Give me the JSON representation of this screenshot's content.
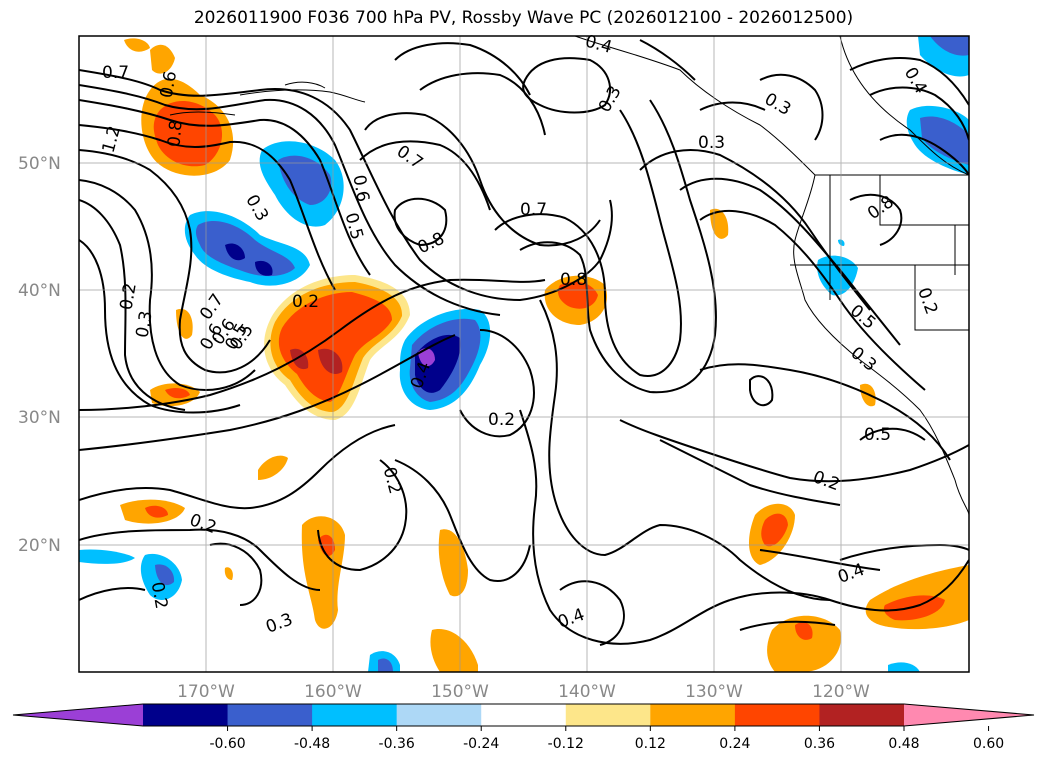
{
  "title": "2026011900 F036 700 hPa PV, Rossby Wave PC (2026012100 - 2026012500)",
  "lat_labels": [
    "50°N",
    "40°N",
    "30°N",
    "20°N"
  ],
  "lon_labels": [
    "170°W",
    "160°W",
    "150°W",
    "140°W",
    "130°W",
    "120°W"
  ],
  "colorbar": {
    "ticks": [
      "-0.60",
      "-0.48",
      "-0.36",
      "-0.24",
      "-0.12",
      "0.12",
      "0.24",
      "0.36",
      "0.48",
      "0.60"
    ],
    "colors": [
      "#9b3fd6",
      "#00008b",
      "#3a5fcd",
      "#00bfff",
      "#add8f6",
      "#ffffff",
      "#fde68a",
      "#ffa500",
      "#ff4500",
      "#b22222",
      "#ff89b0"
    ]
  },
  "contour_labels": [
    "0.7",
    "0.6",
    "1.2",
    "0.8",
    "0.3",
    "0.6",
    "0.5",
    "0.7",
    "0.8",
    "0.7",
    "0.3",
    "0.4",
    "0.3",
    "0.3",
    "0.8",
    "0.6",
    "0.5",
    "0.4",
    "0.2",
    "0.3",
    "0.7",
    "0.6",
    "0.5",
    "0.2",
    "0.8",
    "0.4",
    "0.2",
    "0.5",
    "0.3",
    "0.5",
    "0.2",
    "0.4",
    "0.2",
    "0.2",
    "0.2",
    "0.3",
    "0.4",
    "0.2"
  ]
}
